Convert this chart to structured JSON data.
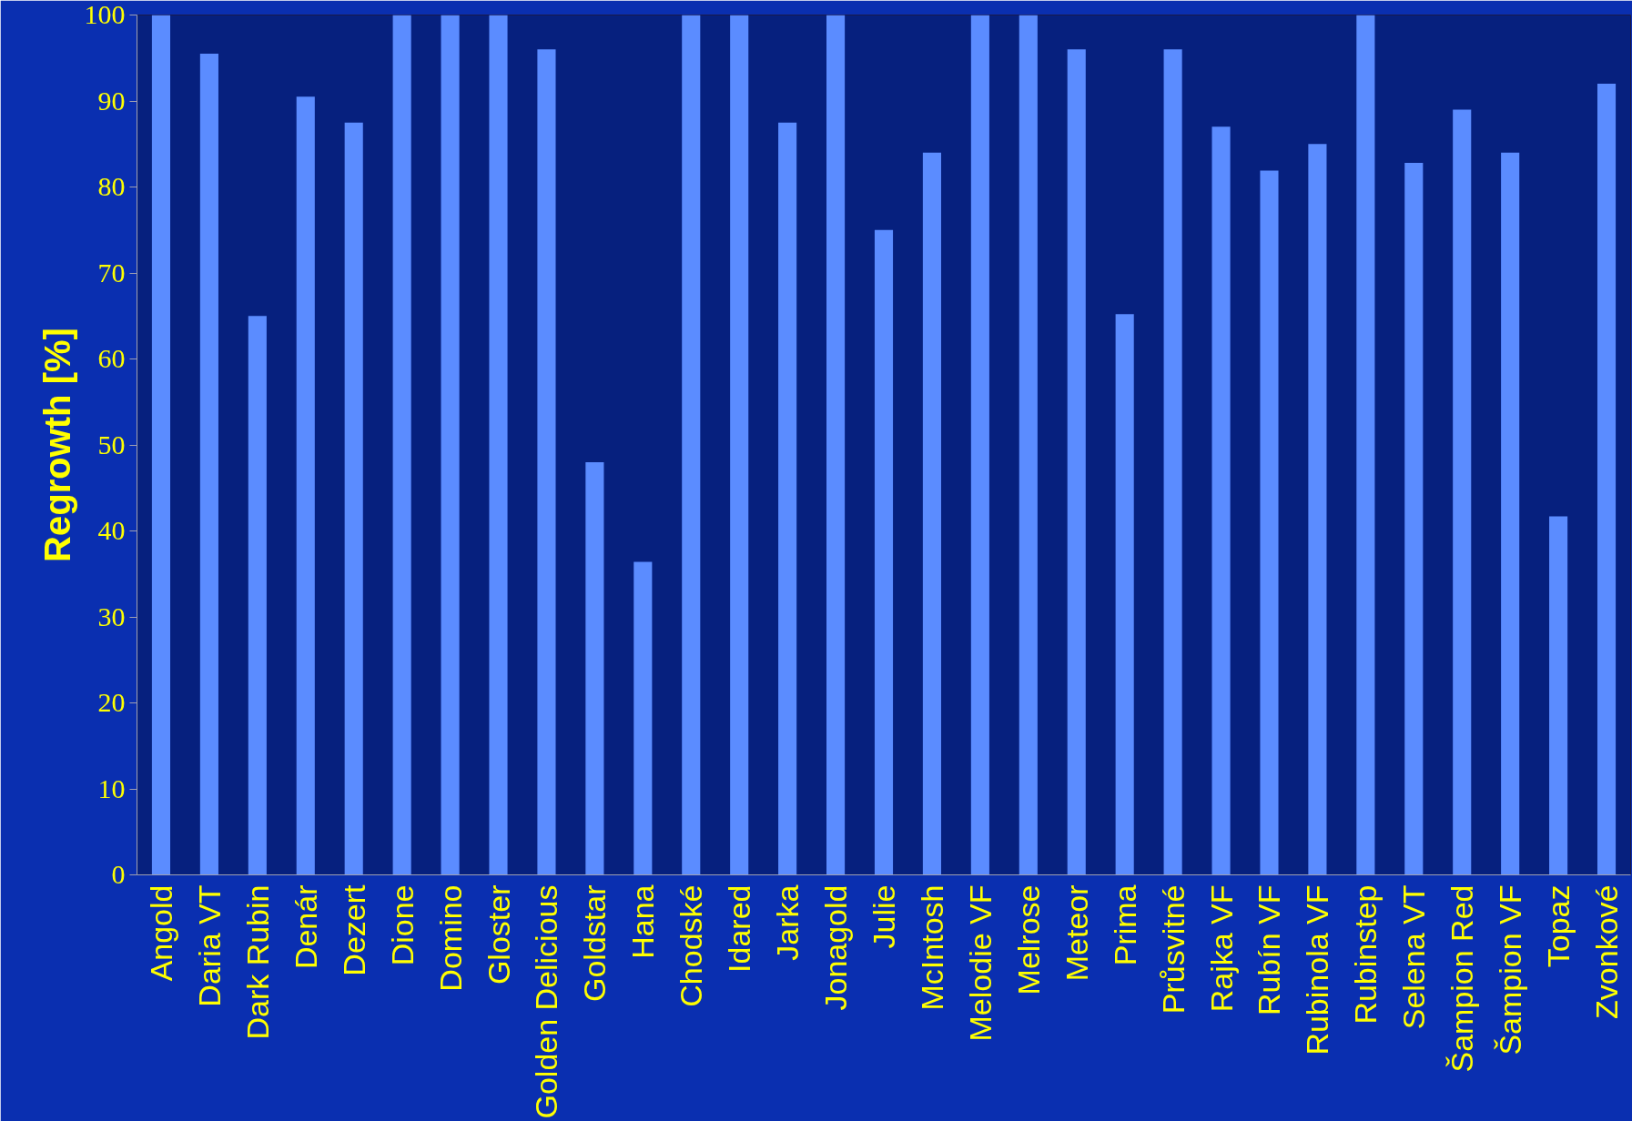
{
  "chart_data": {
    "type": "bar",
    "ylabel": "Regrowth [%]",
    "categories": [
      "Angold",
      "Daria VT",
      "Dark Rubin",
      "Denár",
      "Dezert",
      "Dione",
      "Domino",
      "Gloster",
      "Golden Delicious",
      "Goldstar",
      "Hana",
      "Chodské",
      "Idared",
      "Jarka",
      "Jonagold",
      "Julie",
      "McIntosh",
      "Melodie VF",
      "Melrose",
      "Meteor",
      "Prima",
      "Průsvitné",
      "Rajka VF",
      "Rubín VF",
      "Rubinola VF",
      "Rubinstep",
      "Selena VT",
      "Šampion Red",
      "Šampion VF",
      "Topaz",
      "Zvonkové"
    ],
    "values": [
      100,
      95.5,
      65,
      90.5,
      87.5,
      100,
      100,
      100,
      96,
      48,
      36.4,
      100,
      100,
      87.5,
      100,
      75,
      84,
      100,
      100,
      96,
      65.2,
      96,
      87,
      81.9,
      85,
      100,
      82.8,
      89,
      84,
      41.7,
      92
    ],
    "color": "#5b8cff",
    "ylim": [
      0,
      100
    ],
    "yticks": [
      0,
      10,
      20,
      30,
      40,
      50,
      60,
      70,
      80,
      90,
      100
    ],
    "grid": false
  }
}
